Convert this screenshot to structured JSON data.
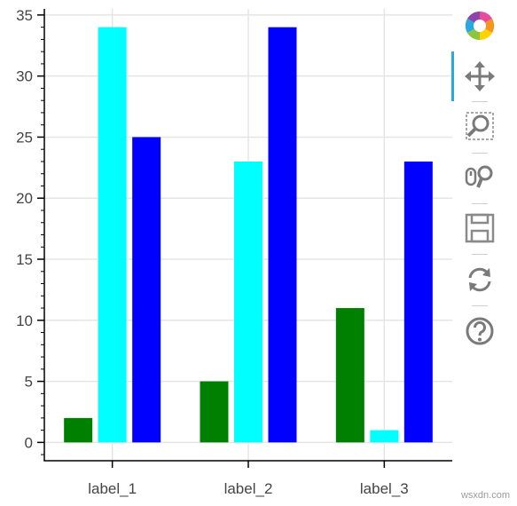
{
  "chart_data": {
    "type": "bar",
    "categories": [
      "label_1",
      "label_2",
      "label_3"
    ],
    "series": [
      {
        "values": [
          2,
          5,
          11
        ],
        "color": "#008000"
      },
      {
        "values": [
          34,
          23,
          1
        ],
        "color": "#00ffff"
      },
      {
        "values": [
          25,
          34,
          23
        ],
        "color": "#0000ff"
      }
    ],
    "ylim": [
      -1.5,
      35.5
    ],
    "yticks": [
      0,
      5,
      10,
      15,
      20,
      25,
      30,
      35
    ],
    "grid": true,
    "legend": "none"
  },
  "toolbar": {
    "tools": [
      "logo-icon",
      "pan-icon",
      "box-zoom-icon",
      "wheel-zoom-icon",
      "save-icon",
      "reset-icon",
      "help-icon"
    ]
  },
  "watermark": "wsxdn.com"
}
